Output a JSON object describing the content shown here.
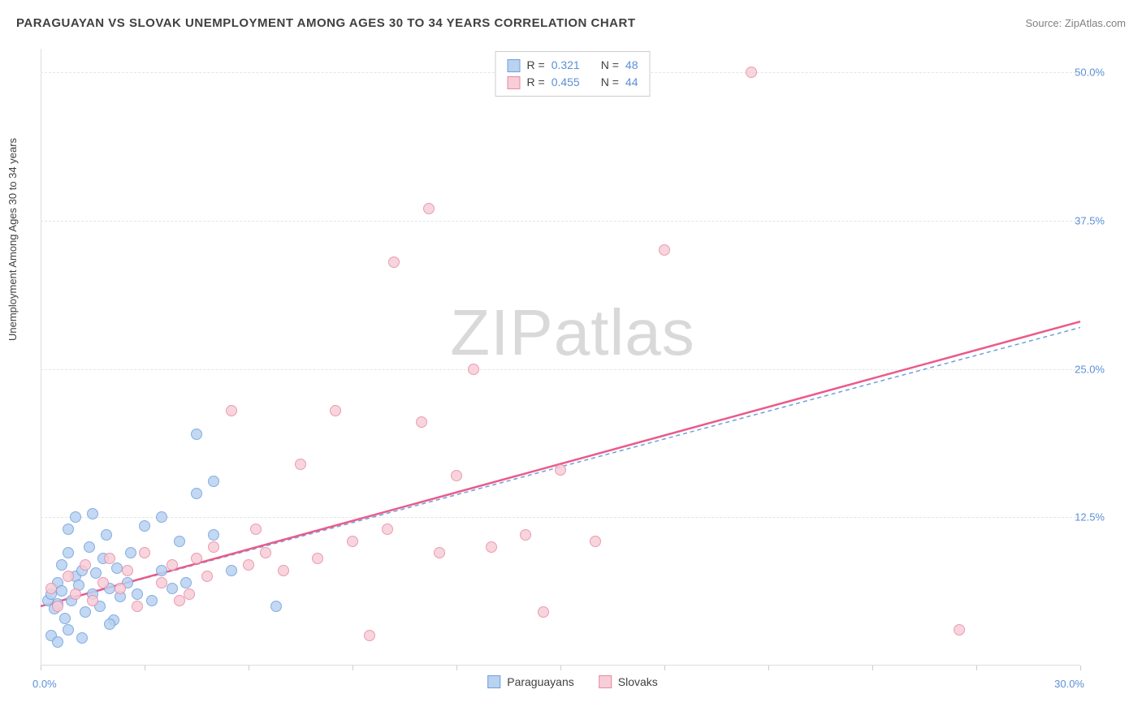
{
  "title": "PARAGUAYAN VS SLOVAK UNEMPLOYMENT AMONG AGES 30 TO 34 YEARS CORRELATION CHART",
  "source": "Source: ZipAtlas.com",
  "y_axis_label": "Unemployment Among Ages 30 to 34 years",
  "watermark": "ZIPatlas",
  "chart": {
    "type": "scatter",
    "xlim": [
      0,
      30
    ],
    "ylim": [
      0,
      52
    ],
    "x_ticks": [
      0,
      3,
      6,
      9,
      12,
      15,
      18,
      21,
      24,
      27,
      30
    ],
    "x_tick_labels": {
      "0": "0.0%",
      "30": "30.0%"
    },
    "y_ticks": [
      12.5,
      25.0,
      37.5,
      50.0
    ],
    "y_tick_labels": [
      "12.5%",
      "25.0%",
      "37.5%",
      "50.0%"
    ],
    "grid_color": "#e5e5e5",
    "background_color": "#ffffff",
    "axis_color": "#dddddd",
    "tick_label_color": "#5b8fd6",
    "marker_radius": 7,
    "marker_stroke_width": 1.2,
    "series": [
      {
        "name": "Paraguayans",
        "fill": "#b9d2f0",
        "stroke": "#6f9fdd",
        "R": "0.321",
        "N": "48",
        "trend": {
          "x1": 0,
          "y1": 5.0,
          "x2": 30,
          "y2": 28.5,
          "stroke": "#6f9fdd",
          "dash": "5,4",
          "width": 1.5
        },
        "points": [
          [
            0.2,
            5.5
          ],
          [
            0.3,
            6.0
          ],
          [
            0.4,
            4.8
          ],
          [
            0.5,
            7.0
          ],
          [
            0.5,
            5.2
          ],
          [
            0.6,
            8.5
          ],
          [
            0.6,
            6.3
          ],
          [
            0.7,
            4.0
          ],
          [
            0.8,
            9.5
          ],
          [
            0.8,
            11.5
          ],
          [
            0.9,
            5.5
          ],
          [
            1.0,
            7.5
          ],
          [
            1.0,
            12.5
          ],
          [
            1.1,
            6.8
          ],
          [
            1.2,
            8.0
          ],
          [
            1.3,
            4.5
          ],
          [
            1.4,
            10.0
          ],
          [
            1.5,
            6.0
          ],
          [
            1.5,
            12.8
          ],
          [
            1.6,
            7.8
          ],
          [
            1.7,
            5.0
          ],
          [
            1.8,
            9.0
          ],
          [
            1.9,
            11.0
          ],
          [
            2.0,
            6.5
          ],
          [
            2.1,
            3.8
          ],
          [
            2.2,
            8.2
          ],
          [
            2.3,
            5.8
          ],
          [
            2.5,
            7.0
          ],
          [
            2.6,
            9.5
          ],
          [
            2.8,
            6.0
          ],
          [
            3.0,
            11.8
          ],
          [
            3.2,
            5.5
          ],
          [
            3.5,
            8.0
          ],
          [
            3.5,
            12.5
          ],
          [
            3.8,
            6.5
          ],
          [
            4.0,
            10.5
          ],
          [
            4.2,
            7.0
          ],
          [
            4.5,
            14.5
          ],
          [
            4.5,
            19.5
          ],
          [
            5.0,
            11.0
          ],
          [
            5.0,
            15.5
          ],
          [
            5.5,
            8.0
          ],
          [
            0.3,
            2.5
          ],
          [
            0.5,
            2.0
          ],
          [
            0.8,
            3.0
          ],
          [
            1.2,
            2.3
          ],
          [
            2.0,
            3.5
          ],
          [
            6.8,
            5.0
          ]
        ]
      },
      {
        "name": "Slovaks",
        "fill": "#f7cdd8",
        "stroke": "#e88aa5",
        "R": "0.455",
        "N": "44",
        "trend": {
          "x1": 0,
          "y1": 5.0,
          "x2": 30,
          "y2": 29.0,
          "stroke": "#ea5b8a",
          "dash": "none",
          "width": 2.5
        },
        "points": [
          [
            0.3,
            6.5
          ],
          [
            0.5,
            5.0
          ],
          [
            0.8,
            7.5
          ],
          [
            1.0,
            6.0
          ],
          [
            1.3,
            8.5
          ],
          [
            1.5,
            5.5
          ],
          [
            1.8,
            7.0
          ],
          [
            2.0,
            9.0
          ],
          [
            2.3,
            6.5
          ],
          [
            2.5,
            8.0
          ],
          [
            2.8,
            5.0
          ],
          [
            3.0,
            9.5
          ],
          [
            3.5,
            7.0
          ],
          [
            3.8,
            8.5
          ],
          [
            4.0,
            5.5
          ],
          [
            4.5,
            9.0
          ],
          [
            4.8,
            7.5
          ],
          [
            5.0,
            10.0
          ],
          [
            5.5,
            21.5
          ],
          [
            6.0,
            8.5
          ],
          [
            6.5,
            9.5
          ],
          [
            7.0,
            8.0
          ],
          [
            7.5,
            17.0
          ],
          [
            8.0,
            9.0
          ],
          [
            8.5,
            21.5
          ],
          [
            9.0,
            10.5
          ],
          [
            9.5,
            2.5
          ],
          [
            10.0,
            11.5
          ],
          [
            10.2,
            34.0
          ],
          [
            11.0,
            20.5
          ],
          [
            11.2,
            38.5
          ],
          [
            11.5,
            9.5
          ],
          [
            12.0,
            16.0
          ],
          [
            12.5,
            25.0
          ],
          [
            13.0,
            10.0
          ],
          [
            14.5,
            4.5
          ],
          [
            15.0,
            16.5
          ],
          [
            16.0,
            10.5
          ],
          [
            18.0,
            35.0
          ],
          [
            20.5,
            50.0
          ],
          [
            26.5,
            3.0
          ],
          [
            14.0,
            11.0
          ],
          [
            6.2,
            11.5
          ],
          [
            4.3,
            6.0
          ]
        ]
      }
    ],
    "stats_box": {
      "rows": [
        {
          "swatch_fill": "#b9d2f0",
          "swatch_stroke": "#6f9fdd",
          "R_label": "R =",
          "R": "0.321",
          "N_label": "N =",
          "N": "48"
        },
        {
          "swatch_fill": "#f7cdd8",
          "swatch_stroke": "#e88aa5",
          "R_label": "R =",
          "R": "0.455",
          "N_label": "N =",
          "N": "44"
        }
      ]
    },
    "legend_bottom": [
      {
        "swatch_fill": "#b9d2f0",
        "swatch_stroke": "#6f9fdd",
        "label": "Paraguayans"
      },
      {
        "swatch_fill": "#f7cdd8",
        "swatch_stroke": "#e88aa5",
        "label": "Slovaks"
      }
    ]
  }
}
